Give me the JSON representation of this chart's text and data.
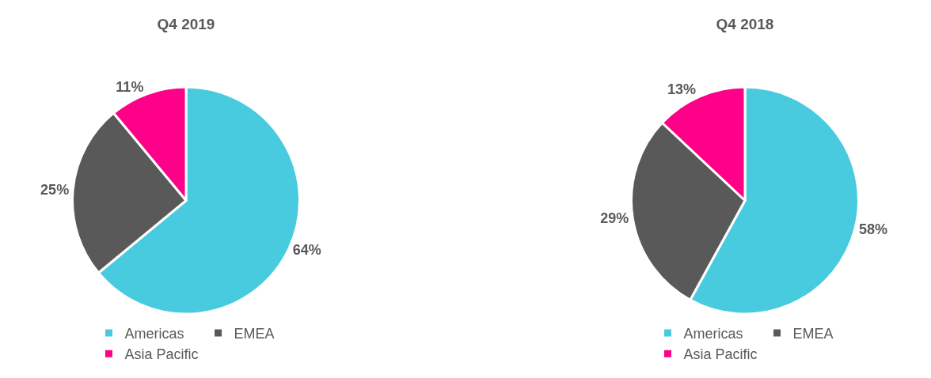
{
  "chart_data": [
    {
      "type": "pie",
      "title": "Q4 2019",
      "categories": [
        "Americas",
        "EMEA",
        "Asia Pacific"
      ],
      "values": [
        64,
        25,
        11
      ],
      "value_labels": [
        "64%",
        "25%",
        "11%"
      ],
      "colors": [
        "#48cbdf",
        "#595959",
        "#ff0088"
      ],
      "legend": "bottom"
    },
    {
      "type": "pie",
      "title": "Q4 2018",
      "categories": [
        "Americas",
        "EMEA",
        "Asia Pacific"
      ],
      "values": [
        58,
        29,
        13
      ],
      "value_labels": [
        "58%",
        "29%",
        "13%"
      ],
      "colors": [
        "#48cbdf",
        "#595959",
        "#ff0088"
      ],
      "legend": "bottom"
    }
  ]
}
